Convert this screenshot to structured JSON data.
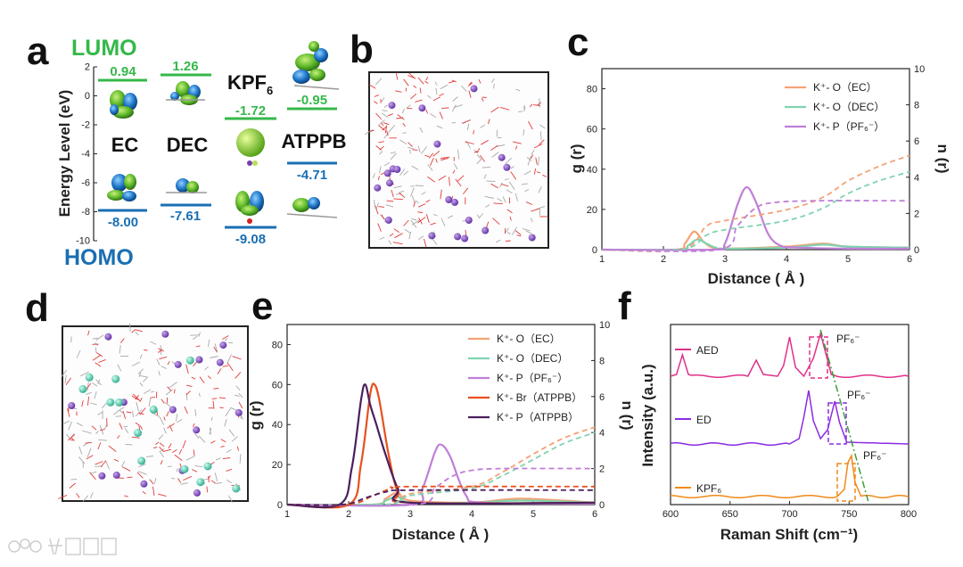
{
  "panel_labels": [
    "a",
    "b",
    "c",
    "d",
    "e",
    "f"
  ],
  "panel_a": {
    "lumo_label": "LUMO",
    "homo_label": "HOMO",
    "ylabel": "Energy Level (eV)",
    "yticks": [
      "2",
      "0",
      "-2",
      "-4",
      "-6",
      "-8",
      "-10"
    ],
    "molecules": [
      {
        "name": "EC",
        "lumo": "0.94",
        "homo": "-8.00"
      },
      {
        "name": "DEC",
        "lumo": "1.26",
        "homo": "-7.61"
      },
      {
        "name": "KPF",
        "name_sub": "6",
        "lumo": "-1.72",
        "homo": "-9.08"
      },
      {
        "name": "ATPPB",
        "lumo": "-0.95",
        "homo": "-4.71"
      }
    ],
    "colors": {
      "lumo": "#35b84a",
      "homo": "#1a6fb3"
    }
  },
  "panel_c": {
    "xlabel": "Distance ( Å )",
    "ylabel_left": "g (r)",
    "ylabel_right": "n (r)",
    "xticks": [
      "1",
      "2",
      "3",
      "4",
      "5",
      "6"
    ],
    "yticks_left": [
      "0",
      "20",
      "40",
      "60",
      "80"
    ],
    "yticks_right": [
      "0",
      "2",
      "4",
      "6",
      "8",
      "10"
    ],
    "legend": [
      {
        "label": "K⁺- O（EC）",
        "color": "#f4a276"
      },
      {
        "label": "K⁺- O（DEC）",
        "color": "#7fd3b0"
      },
      {
        "label": "K⁺- P（PF₆⁻）",
        "color": "#c07ed8"
      }
    ]
  },
  "panel_e": {
    "xlabel": "Distance ( Å )",
    "ylabel_left": "g (r)",
    "ylabel_right": "n (r)",
    "xticks": [
      "1",
      "2",
      "3",
      "4",
      "5",
      "6"
    ],
    "yticks_left": [
      "0",
      "20",
      "40",
      "60",
      "80"
    ],
    "yticks_right": [
      "0",
      "2",
      "4",
      "6",
      "8",
      "10"
    ],
    "legend": [
      {
        "label": "K⁺- O（EC）",
        "color": "#f4a276"
      },
      {
        "label": "K⁺- O（DEC）",
        "color": "#7fd3b0"
      },
      {
        "label": "K⁺- P（PF₆⁻）",
        "color": "#c07ed8"
      },
      {
        "label": "K⁺- Br（ATPPB）",
        "color": "#e8501e"
      },
      {
        "label": "K⁺- P（ATPPB）",
        "color": "#4a1f5e"
      }
    ]
  },
  "panel_f": {
    "xlabel": "Raman Shift (cm⁻¹)",
    "ylabel": "Intensity (a.u.)",
    "xticks": [
      "600",
      "650",
      "700",
      "750",
      "800"
    ],
    "series": [
      {
        "name": "AED",
        "color": "#e0308a",
        "annotation": "PF₆⁻"
      },
      {
        "name": "ED",
        "color": "#8a2be2",
        "annotation": "PF₆⁻"
      },
      {
        "name": "KPF₆",
        "color": "#ef8a1a",
        "annotation": "PF₆⁻"
      }
    ]
  },
  "chart_data": [
    {
      "type": "line",
      "panel": "c",
      "xlabel": "Distance ( Å )",
      "ylabel": "g (r)",
      "y2label": "n (r)",
      "xlim": [
        1,
        6
      ],
      "ylim": [
        0,
        90
      ],
      "y2lim": [
        0,
        10
      ],
      "series": [
        {
          "name": "K⁺- O（EC）",
          "axis": "g",
          "x": [
            1,
            2.2,
            2.35,
            2.5,
            2.65,
            2.8,
            3.0,
            4.0,
            4.6,
            5.0,
            6.0
          ],
          "y": [
            0,
            0,
            3,
            9,
            4,
            1,
            0.5,
            1.5,
            3,
            1.5,
            1
          ]
        },
        {
          "name": "K⁺- O（DEC）",
          "axis": "g",
          "x": [
            1,
            2.25,
            2.4,
            2.55,
            2.7,
            2.85,
            3.0,
            4.0,
            4.6,
            5.0,
            6.0
          ],
          "y": [
            0,
            0,
            2,
            5,
            3,
            1,
            0.5,
            1,
            2.5,
            1.5,
            1
          ]
        },
        {
          "name": "K⁺- P（PF₆⁻）",
          "axis": "g",
          "x": [
            1,
            2.8,
            3.0,
            3.2,
            3.35,
            3.5,
            3.7,
            3.9,
            4.2,
            5.0,
            6.0
          ],
          "y": [
            0,
            0,
            3,
            22,
            31,
            24,
            8,
            2,
            1,
            0.5,
            0.5
          ]
        },
        {
          "name": "n(r) K⁺- O（EC）",
          "axis": "n",
          "x": [
            1,
            2.3,
            2.7,
            3.0,
            4.0,
            4.6,
            5.0,
            5.5,
            6.0
          ],
          "y": [
            0,
            0,
            1.3,
            1.6,
            2.2,
            2.9,
            3.8,
            4.6,
            5.2
          ]
        },
        {
          "name": "n(r) K⁺- O（DEC）",
          "axis": "n",
          "x": [
            1,
            2.3,
            2.7,
            3.0,
            4.0,
            4.6,
            5.0,
            5.5,
            6.0
          ],
          "y": [
            0,
            0,
            0.8,
            1.1,
            1.6,
            2.3,
            3.1,
            3.8,
            4.3
          ]
        },
        {
          "name": "n(r) K⁺- P（PF₆⁻）",
          "axis": "n",
          "x": [
            1,
            2.9,
            3.2,
            3.5,
            3.8,
            4.5,
            6.0
          ],
          "y": [
            0,
            0,
            1.3,
            2.3,
            2.6,
            2.7,
            2.7
          ]
        }
      ]
    },
    {
      "type": "line",
      "panel": "e",
      "xlabel": "Distance ( Å )",
      "ylabel": "g (r)",
      "y2label": "n (r)",
      "xlim": [
        1,
        6
      ],
      "ylim": [
        0,
        90
      ],
      "y2lim": [
        0,
        10
      ],
      "series": [
        {
          "name": "K⁺- O（EC）",
          "axis": "g",
          "x": [
            1,
            2.4,
            2.6,
            2.8,
            3.0,
            4.0,
            4.8,
            6.0
          ],
          "y": [
            0,
            0,
            3,
            6,
            2,
            1,
            3,
            1
          ]
        },
        {
          "name": "K⁺- O（DEC）",
          "axis": "g",
          "x": [
            1,
            2.4,
            2.6,
            2.8,
            3.0,
            4.0,
            4.8,
            6.0
          ],
          "y": [
            0,
            0,
            2,
            4,
            1,
            1,
            2,
            1
          ]
        },
        {
          "name": "K⁺- P（PF₆⁻）",
          "axis": "g",
          "x": [
            1,
            3.0,
            3.2,
            3.4,
            3.5,
            3.65,
            3.9,
            4.2,
            6.0
          ],
          "y": [
            0,
            0,
            8,
            26,
            30,
            24,
            5,
            1,
            0.5
          ]
        },
        {
          "name": "K⁺- Br（ATPPB）",
          "axis": "g",
          "x": [
            1,
            2.0,
            2.2,
            2.35,
            2.42,
            2.5,
            2.65,
            2.8,
            3.0,
            6.0
          ],
          "y": [
            0,
            0,
            20,
            55,
            60,
            52,
            25,
            6,
            1,
            1
          ]
        },
        {
          "name": "K⁺- P（ATPPB）",
          "axis": "g",
          "x": [
            1,
            1.85,
            2.05,
            2.2,
            2.27,
            2.35,
            2.45,
            2.6,
            2.8,
            3.0,
            6.0
          ],
          "y": [
            0,
            0,
            18,
            52,
            60,
            50,
            40,
            25,
            8,
            1,
            1
          ]
        },
        {
          "name": "n(r) K⁺- O（EC）",
          "axis": "n",
          "x": [
            1,
            2.6,
            3.0,
            4.0,
            4.5,
            5.0,
            5.5,
            6.0
          ],
          "y": [
            0,
            0,
            0.6,
            1.0,
            1.8,
            2.8,
            3.7,
            4.3
          ]
        },
        {
          "name": "n(r) K⁺- O（DEC）",
          "axis": "n",
          "x": [
            1,
            2.6,
            3.0,
            4.0,
            4.5,
            5.0,
            5.5,
            6.0
          ],
          "y": [
            0,
            0,
            0.5,
            0.9,
            1.6,
            2.5,
            3.4,
            4.0
          ]
        },
        {
          "name": "n(r) K⁺- P（PF₆⁻）",
          "axis": "n",
          "x": [
            1,
            3.1,
            3.4,
            3.7,
            4.0,
            4.5,
            6.0
          ],
          "y": [
            0,
            0,
            0.9,
            1.6,
            1.9,
            2.0,
            2.0
          ]
        },
        {
          "name": "n(r) K⁺- Br（ATPPB）",
          "axis": "n",
          "x": [
            1,
            2.0,
            2.4,
            2.7,
            3.0,
            6.0
          ],
          "y": [
            0,
            0,
            0.5,
            0.9,
            1.0,
            1.0
          ]
        },
        {
          "name": "n(r) K⁺- P（ATPPB）",
          "axis": "n",
          "x": [
            1,
            1.9,
            2.3,
            2.6,
            3.0,
            6.0
          ],
          "y": [
            0,
            0,
            0.4,
            0.7,
            0.8,
            0.8
          ]
        }
      ]
    },
    {
      "type": "line",
      "panel": "f",
      "xlabel": "Raman Shift (cm⁻¹)",
      "ylabel": "Intensity (a.u.)",
      "xlim": [
        600,
        800
      ],
      "series": [
        {
          "name": "AED",
          "x": [
            600,
            605,
            610,
            615,
            620,
            665,
            672,
            678,
            690,
            695,
            700,
            705,
            712,
            720,
            726,
            730,
            735,
            740,
            800
          ],
          "y": [
            0,
            0.1,
            1.2,
            0.1,
            0,
            0,
            0.9,
            0.1,
            0,
            0.6,
            2.2,
            0.5,
            0,
            1.0,
            2.4,
            1.4,
            0.1,
            0,
            0
          ]
        },
        {
          "name": "ED",
          "x": [
            600,
            700,
            708,
            712,
            716,
            720,
            726,
            732,
            738,
            742,
            748,
            800
          ],
          "y": [
            0,
            0,
            0.3,
            1.5,
            3.0,
            1.3,
            0.3,
            0.8,
            2.4,
            1.2,
            0.1,
            0
          ]
        },
        {
          "name": "KPF₆",
          "x": [
            600,
            740,
            746,
            749,
            752,
            755,
            760,
            800
          ],
          "y": [
            0,
            0,
            0.4,
            1.9,
            2.3,
            0.8,
            0,
            0
          ]
        }
      ]
    }
  ]
}
